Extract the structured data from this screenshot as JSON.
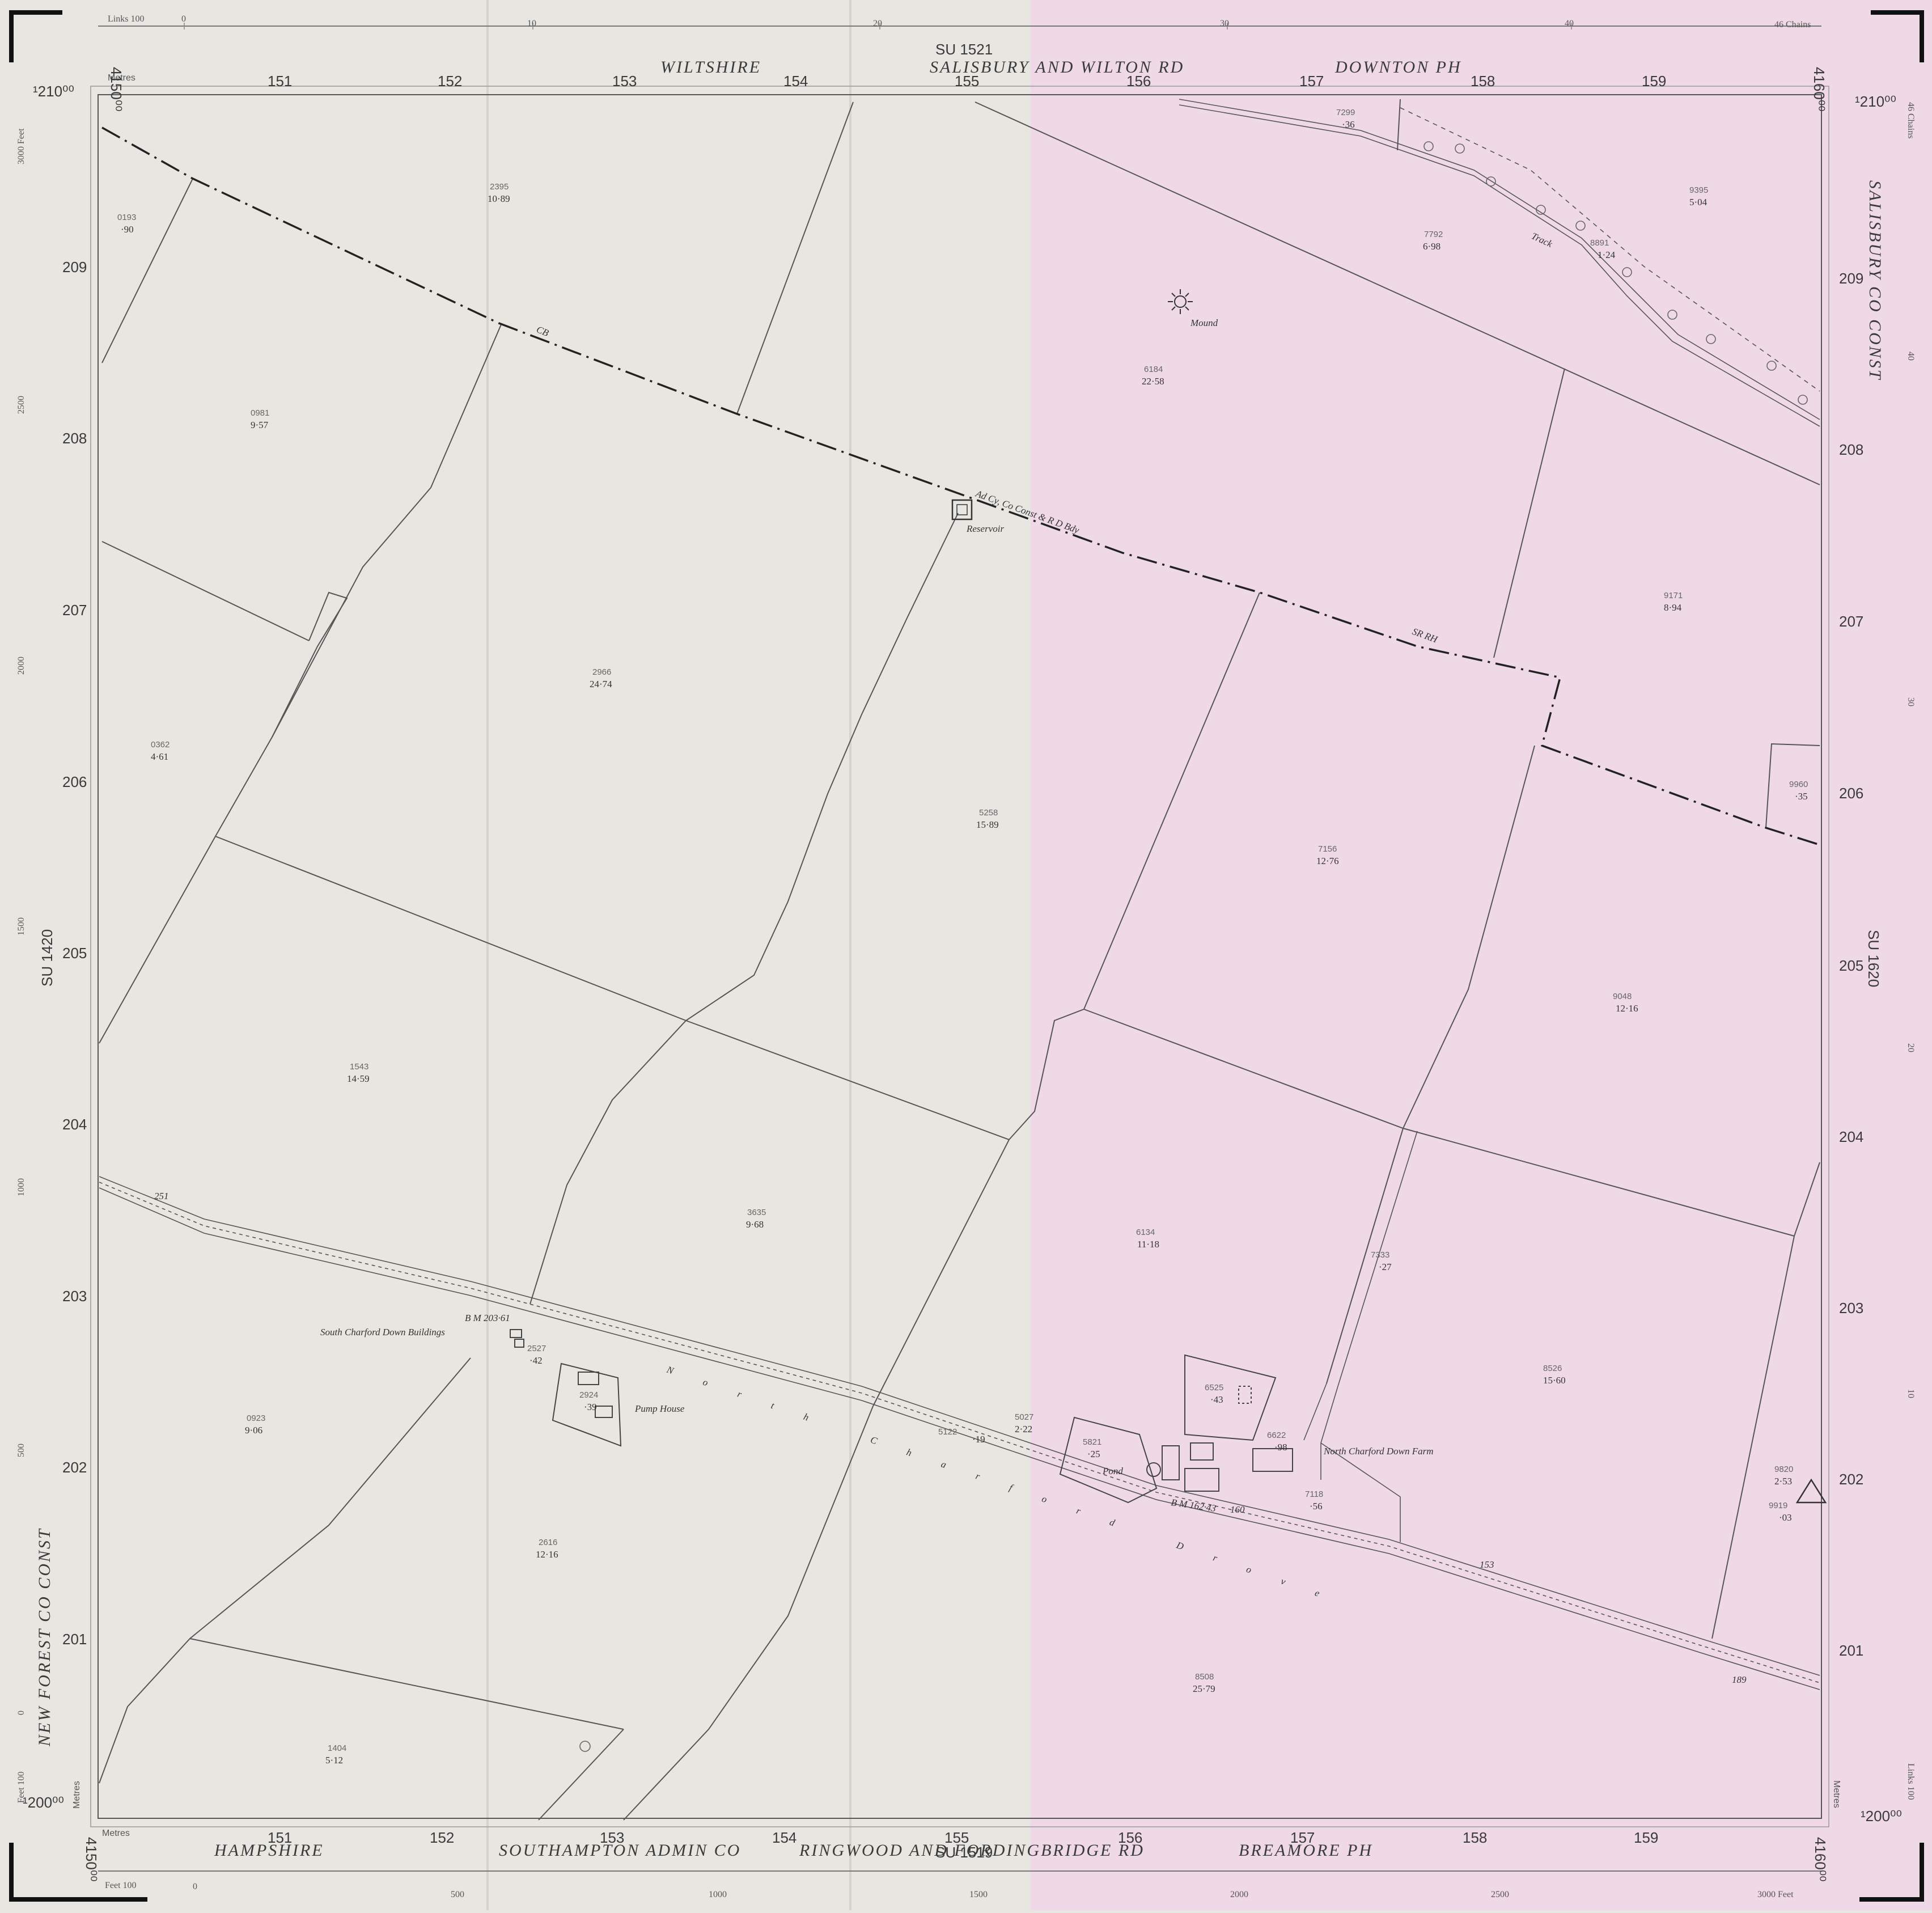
{
  "sheet": {
    "top_sheet_ref": "SU 1521",
    "bottom_sheet_ref": "SU 1519",
    "left_sheet_ref": "SU 1420",
    "right_sheet_ref": "SU 1620",
    "top_admin": [
      "WILTSHIRE",
      "SALISBURY AND WILTON RD",
      "DOWNTON PH"
    ],
    "bottom_admin": [
      "HAMPSHIRE",
      "SOUTHAMPTON ADMIN CO",
      "RINGWOOD AND FORDINGBRIDGE RD",
      "BREAMORE PH"
    ],
    "left_admin": "NEW FOREST CO CONST",
    "right_admin": "SALISBURY CO CONST",
    "scale_links_top": {
      "label": "Links 100",
      "ticks": [
        "0",
        "10",
        "20",
        "30",
        "40"
      ],
      "end": "46 Chains"
    },
    "scale_feet_bottom": {
      "label": "Feet 100",
      "ticks": [
        "0",
        "500",
        "1000",
        "1500",
        "2000",
        "2500"
      ],
      "end": "3000 Feet"
    },
    "left_feet_ticks": [
      "3000 Feet",
      "2500",
      "2000",
      "1500",
      "1000",
      "500",
      "0",
      "Feet 100"
    ],
    "right_links_ticks": [
      "46 Chains",
      "40",
      "30",
      "20",
      "10",
      "Links 100"
    ],
    "metres_label": "Metres",
    "eastings": [
      "151",
      "152",
      "153",
      "154",
      "155",
      "156",
      "157",
      "158",
      "159"
    ],
    "northings": [
      "209",
      "208",
      "207",
      "206",
      "205",
      "204",
      "203",
      "202",
      "201"
    ],
    "corner_labels": {
      "top_left_easting": "4150⁰⁰",
      "top_right_easting": "4160⁰⁰",
      "bottom_left_easting": "4150⁰⁰",
      "bottom_right_easting": "4160⁰⁰",
      "top_northing_left": "¹210⁰⁰",
      "top_northing_right": "¹210⁰⁰",
      "bottom_northing_left": "¹200⁰⁰",
      "bottom_northing_right": "¹200⁰⁰"
    },
    "highlight_color": "#efd9e6",
    "paper_color": "#e8e6e1"
  },
  "parcels": [
    {
      "number": "0193",
      "area": "·90"
    },
    {
      "number": "2395",
      "area": "10·89"
    },
    {
      "number": "0981",
      "area": "9·57"
    },
    {
      "number": "2966",
      "area": "24·74"
    },
    {
      "number": "0362",
      "area": "4·61"
    },
    {
      "number": "5258",
      "area": "15·89"
    },
    {
      "number": "1543",
      "area": "14·59"
    },
    {
      "number": "3635",
      "area": "9·68"
    },
    {
      "number": "0923",
      "area": "9·06"
    },
    {
      "number": "2527",
      "area": "·42"
    },
    {
      "number": "2924",
      "area": "·39"
    },
    {
      "number": "2616",
      "area": "12·16"
    },
    {
      "number": "1404",
      "area": "5·12"
    },
    {
      "number": "7299",
      "area": "·36"
    },
    {
      "number": "7792",
      "area": "6·98"
    },
    {
      "number": "8891",
      "area": "1·24"
    },
    {
      "number": "9395",
      "area": "5·04"
    },
    {
      "number": "6184",
      "area": "22·58"
    },
    {
      "number": "9171",
      "area": "8·94"
    },
    {
      "number": "9960",
      "area": "·35"
    },
    {
      "number": "7156",
      "area": "12·76"
    },
    {
      "number": "9048",
      "area": "12·16"
    },
    {
      "number": "6134",
      "area": "11·18"
    },
    {
      "number": "7333",
      "area": "·27"
    },
    {
      "number": "8526",
      "area": "15·60"
    },
    {
      "number": "6525",
      "area": "·43"
    },
    {
      "number": "6622",
      "area": "·98"
    },
    {
      "number": "5821",
      "area": "·25"
    },
    {
      "number": "5027",
      "area": "2·22"
    },
    {
      "number": "5122",
      "area": "·19"
    },
    {
      "number": "7118",
      "area": "·56"
    },
    {
      "number": "9820",
      "area": "2·53"
    },
    {
      "number": "9919",
      "area": "·03"
    },
    {
      "number": "8508",
      "area": "25·79"
    }
  ],
  "features": {
    "mound": "Mound",
    "reservoir": "Reservoir",
    "track": "Track",
    "cb": "CB",
    "boundary_note": "Ad Cy, Co Const & R D Bdy",
    "srb": "SR RH",
    "south_charford": "South Charford Down Buildings",
    "pump_house": "Pump House",
    "north_charford_farm": "North Charford Down Farm",
    "pond": "Pond",
    "bm_1": "B M 203·61",
    "bm_2": "B M 162·43",
    "spot_251": "251",
    "spot_160": "160",
    "spot_189": "189",
    "spot_153": "153",
    "drove_name": "North Charford Drove"
  }
}
